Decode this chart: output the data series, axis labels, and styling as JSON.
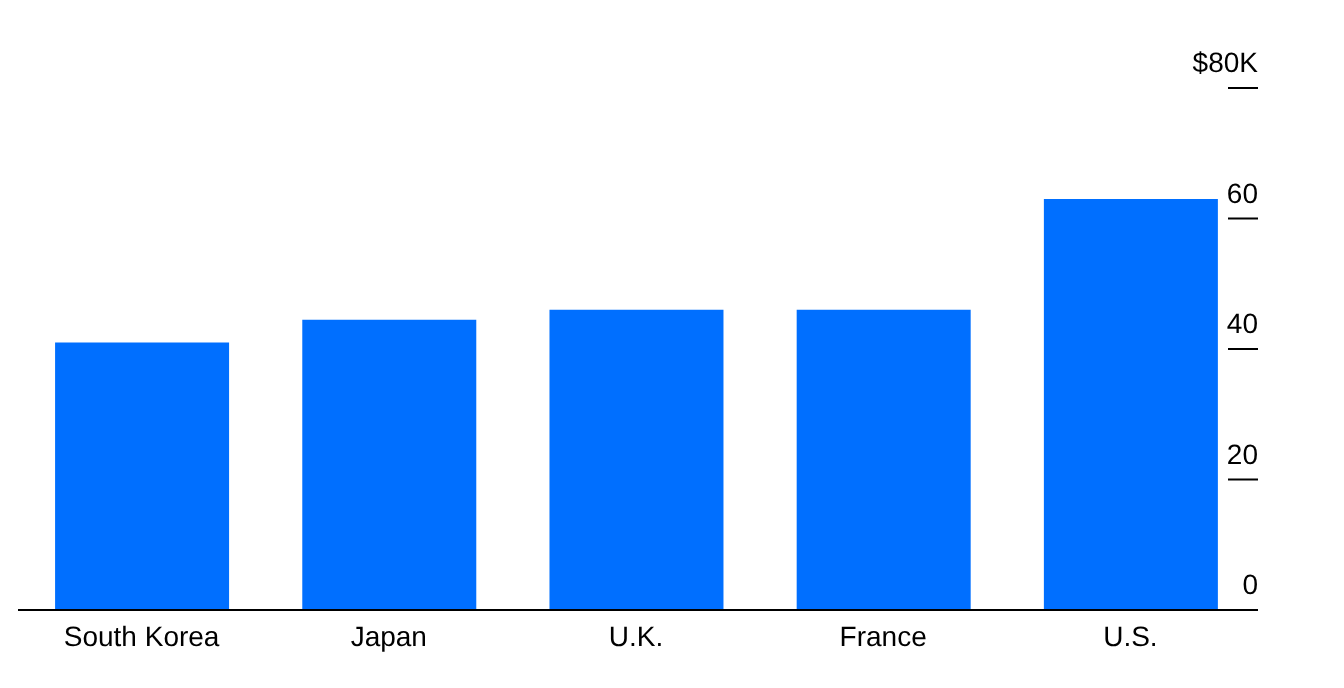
{
  "chart_data": {
    "type": "bar",
    "categories": [
      "South Korea",
      "Japan",
      "U.K.",
      "France",
      "U.S."
    ],
    "values": [
      41,
      44.5,
      46,
      46,
      63
    ],
    "color": "#006fff",
    "ylim": [
      0,
      80
    ],
    "yticks": [
      0,
      20,
      40,
      60,
      {
        "value": 80,
        "label": "$80K"
      }
    ]
  }
}
